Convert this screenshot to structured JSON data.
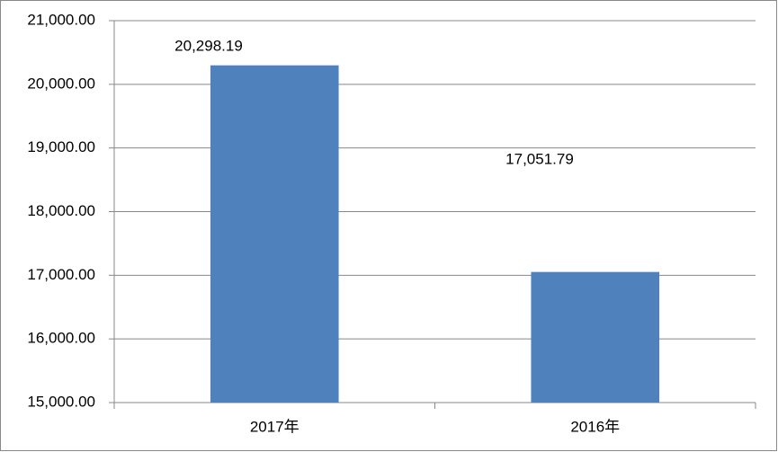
{
  "chart_data": {
    "type": "bar",
    "categories": [
      "2017年",
      "2016年"
    ],
    "values": [
      20298.19,
      17051.79
    ],
    "value_labels": [
      "20,298.19",
      "17,051.79"
    ],
    "color": "#4f81bd",
    "ylim": [
      15000,
      21000
    ],
    "yticks": [
      {
        "value": 15000,
        "label": "15,000.00"
      },
      {
        "value": 16000,
        "label": "16,000.00"
      },
      {
        "value": 17000,
        "label": "17,000.00"
      },
      {
        "value": 18000,
        "label": "18,000.00"
      },
      {
        "value": 19000,
        "label": "19,000.00"
      },
      {
        "value": 20000,
        "label": "20,000.00"
      },
      {
        "value": 21000,
        "label": "21,000.00"
      }
    ],
    "grid": true
  }
}
